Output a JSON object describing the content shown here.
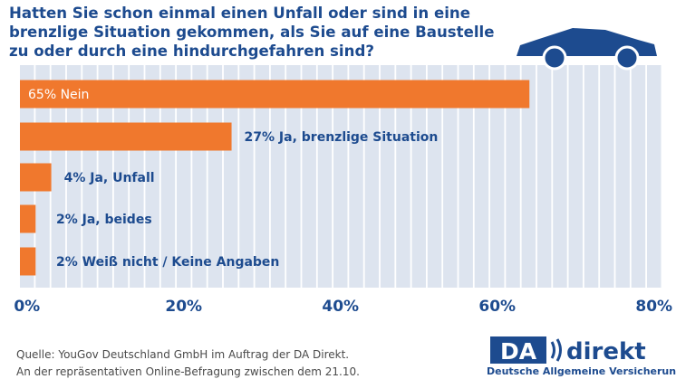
{
  "title_lines": [
    "Hatten Sie schon einmal einen Unfall oder sind in eine",
    "brenzlige Situation gekommen, als Sie auf eine Baustelle",
    "zu oder durch eine hindurchgefahren sind?"
  ],
  "chart_data": {
    "type": "bar",
    "orientation": "horizontal",
    "categories": [
      "Nein",
      "Ja, brenzlige Situation",
      "Ja, Unfall",
      "Ja, beides",
      "Weiß nicht / Keine Angaben"
    ],
    "values": [
      65,
      27,
      4,
      2,
      2
    ],
    "bar_labels": [
      "65% Nein",
      "27% Ja, brenzlige Situation",
      "4% Ja, Unfall",
      "2% Ja, beides",
      "2% Weiß nicht / Keine Angaben"
    ],
    "x_ticks": [
      0,
      20,
      40,
      60,
      80
    ],
    "x_tick_labels": [
      "0%",
      "20%",
      "40%",
      "60%",
      "80%"
    ],
    "xlim": [
      0,
      80
    ],
    "grid": true,
    "bar_color": "#f0782d",
    "grid_color": "#dde4ef",
    "label_inside_color": "#ffffff",
    "label_outside_color": "#1d4b8f"
  },
  "footer": {
    "source_line1": "Quelle: YouGov Deutschland GmbH im Auftrag der DA Direkt.",
    "source_line2": "An der repräsentativen Online-Befragung zwischen dem 21.10."
  },
  "logo": {
    "da": "DA",
    "direkt": "direkt",
    "tagline": "Deutsche Allgemeine Versicherungen"
  },
  "colors": {
    "title": "#1d4b8f",
    "car": "#1d4b8f"
  },
  "icons": [
    "car-icon"
  ]
}
